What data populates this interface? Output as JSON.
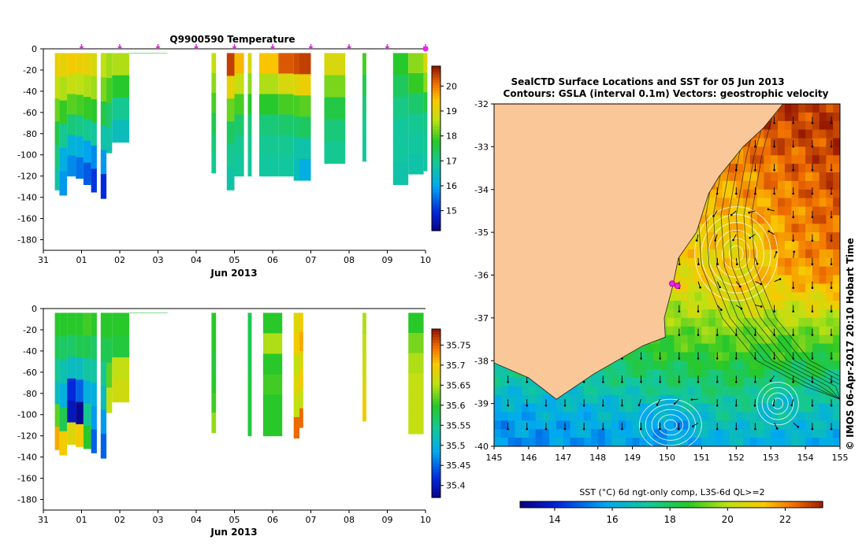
{
  "chart_data": [
    {
      "type": "heatmap",
      "panel": "temperature-profile",
      "title": "Q9900590  Temperature",
      "xlabel": "Jun 2013",
      "ylabel": "",
      "x_tick_labels": [
        "31",
        "01",
        "02",
        "03",
        "04",
        "05",
        "06",
        "07",
        "08",
        "09",
        "10"
      ],
      "x_range_days": [
        31,
        41
      ],
      "y_ticks": [
        0,
        -20,
        -40,
        -60,
        -80,
        -100,
        -120,
        -140,
        -160,
        -180
      ],
      "ylim": [
        -190,
        0
      ],
      "colorbar": {
        "ticks": [
          15,
          16,
          17,
          18,
          19,
          20
        ],
        "range": [
          14.2,
          20.8
        ]
      },
      "profile_marker_days": [
        32.0,
        33.0,
        34.0,
        35.0,
        36.0,
        37.0,
        38.0,
        39.0,
        40.0,
        41.0
      ],
      "profiles": [
        {
          "t0": 31.3,
          "t1": 31.42,
          "bottom": -133,
          "values": [
            19.3,
            18.8,
            18.2,
            17.6,
            17.2,
            16.8
          ]
        },
        {
          "t0": 31.42,
          "t1": 31.62,
          "bottom": -138,
          "values": [
            19.2,
            18.6,
            17.9,
            17.0,
            16.2,
            15.9
          ]
        },
        {
          "t0": 31.62,
          "t1": 31.85,
          "bottom": -120,
          "values": [
            19.4,
            18.8,
            18.1,
            17.2,
            16.3,
            15.8
          ]
        },
        {
          "t0": 31.85,
          "t1": 32.05,
          "bottom": -122,
          "values": [
            19.3,
            18.7,
            18.0,
            17.1,
            16.2,
            15.6
          ]
        },
        {
          "t0": 32.05,
          "t1": 32.25,
          "bottom": -128,
          "values": [
            19.2,
            18.6,
            17.9,
            17.0,
            16.0,
            15.4
          ]
        },
        {
          "t0": 32.25,
          "t1": 32.4,
          "bottom": -135,
          "values": [
            19.0,
            18.5,
            17.8,
            16.9,
            15.8,
            15.1
          ]
        },
        {
          "t0": 32.5,
          "t1": 32.65,
          "bottom": -141,
          "values": [
            18.7,
            18.3,
            17.6,
            16.8,
            15.9,
            15.0
          ]
        },
        {
          "t0": 32.65,
          "t1": 32.8,
          "bottom": -98,
          "values": [
            18.5,
            18.0,
            17.3,
            16.8
          ]
        },
        {
          "t0": 32.8,
          "t1": 33.25,
          "bottom": -88,
          "values": [
            18.6,
            17.8,
            17.0,
            16.6
          ]
        },
        {
          "t0": 33.25,
          "t1": 34.25,
          "bottom": -4,
          "values": [
            17.9
          ]
        },
        {
          "t0": 35.4,
          "t1": 35.52,
          "bottom": -117,
          "values": [
            18.8,
            18.4,
            18.0,
            17.5,
            17.2,
            17.0
          ]
        },
        {
          "t0": 35.8,
          "t1": 36.0,
          "bottom": -133,
          "values": [
            20.5,
            19.2,
            18.2,
            17.4,
            17.0,
            16.8
          ]
        },
        {
          "t0": 36.0,
          "t1": 36.25,
          "bottom": -120,
          "values": [
            19.6,
            18.8,
            18.0,
            17.3,
            17.0,
            16.9
          ]
        },
        {
          "t0": 36.35,
          "t1": 36.45,
          "bottom": -120,
          "values": [
            19.0,
            18.4,
            17.8,
            17.2,
            17.0,
            16.9
          ]
        },
        {
          "t0": 36.65,
          "t1": 37.15,
          "bottom": -120,
          "values": [
            19.5,
            18.6,
            17.8,
            17.2,
            17.0,
            16.9
          ]
        },
        {
          "t0": 37.15,
          "t1": 37.55,
          "bottom": -120,
          "values": [
            20.3,
            19.0,
            18.0,
            17.3,
            17.0,
            16.9
          ]
        },
        {
          "t0": 37.55,
          "t1": 37.7,
          "bottom": -124,
          "values": [
            20.4,
            19.1,
            18.0,
            17.3,
            16.8,
            16.6
          ]
        },
        {
          "t0": 37.7,
          "t1": 38.0,
          "bottom": -124,
          "values": [
            20.5,
            19.3,
            18.1,
            17.4,
            16.8,
            16.2
          ]
        },
        {
          "t0": 38.35,
          "t1": 38.9,
          "bottom": -108,
          "values": [
            19.0,
            18.3,
            17.6,
            17.2,
            17.0
          ]
        },
        {
          "t0": 39.35,
          "t1": 39.45,
          "bottom": -106,
          "values": [
            18.0,
            17.5,
            17.2,
            17.0,
            16.9
          ]
        },
        {
          "t0": 40.15,
          "t1": 40.55,
          "bottom": -128,
          "values": [
            17.8,
            17.4,
            17.1,
            16.9,
            16.9,
            16.8
          ]
        },
        {
          "t0": 40.55,
          "t1": 40.95,
          "bottom": -118,
          "values": [
            18.4,
            17.9,
            17.3,
            17.0,
            16.9,
            16.8
          ]
        },
        {
          "t0": 40.95,
          "t1": 41.05,
          "bottom": -115,
          "values": [
            19.0,
            18.4,
            17.6,
            17.1,
            17.0,
            16.9
          ]
        }
      ]
    },
    {
      "type": "heatmap",
      "panel": "salinity-profile",
      "title": "",
      "xlabel": "Jun 2013",
      "ylabel": "",
      "x_tick_labels": [
        "31",
        "01",
        "02",
        "03",
        "04",
        "05",
        "06",
        "07",
        "08",
        "09",
        "10"
      ],
      "x_range_days": [
        31,
        41
      ],
      "y_ticks": [
        0,
        -20,
        -40,
        -60,
        -80,
        -100,
        -120,
        -140,
        -160,
        -180
      ],
      "ylim": [
        -190,
        0
      ],
      "colorbar": {
        "ticks": [
          35.4,
          35.45,
          35.5,
          35.55,
          35.6,
          35.65,
          35.7,
          35.75
        ],
        "tick_labels": [
          "35.4",
          "35.45",
          "35.5",
          "35.55",
          "35.6",
          "35.65",
          "35.7",
          "35.75"
        ],
        "range": [
          35.37,
          35.79
        ]
      },
      "profiles": [
        {
          "t0": 31.3,
          "t1": 31.42,
          "bottom": -133,
          "values": [
            35.6,
            35.58,
            35.55,
            35.52,
            35.62,
            35.72
          ]
        },
        {
          "t0": 31.42,
          "t1": 31.62,
          "bottom": -138,
          "values": [
            35.6,
            35.57,
            35.53,
            35.5,
            35.58,
            35.7
          ]
        },
        {
          "t0": 31.62,
          "t1": 31.85,
          "bottom": -128,
          "values": [
            35.6,
            35.57,
            35.52,
            35.42,
            35.4,
            35.68
          ]
        },
        {
          "t0": 31.85,
          "t1": 32.05,
          "bottom": -130,
          "values": [
            35.6,
            35.58,
            35.52,
            35.45,
            35.38,
            35.7
          ]
        },
        {
          "t0": 32.05,
          "t1": 32.25,
          "bottom": -132,
          "values": [
            35.61,
            35.58,
            35.54,
            35.5,
            35.55,
            35.6
          ]
        },
        {
          "t0": 32.25,
          "t1": 32.4,
          "bottom": -136,
          "values": [
            35.6,
            35.57,
            35.54,
            35.5,
            35.48,
            35.45
          ]
        },
        {
          "t0": 32.5,
          "t1": 32.65,
          "bottom": -141,
          "values": [
            35.6,
            35.58,
            35.55,
            35.52,
            35.48,
            35.45
          ]
        },
        {
          "t0": 32.65,
          "t1": 32.8,
          "bottom": -98,
          "values": [
            35.6,
            35.58,
            35.62,
            35.66
          ]
        },
        {
          "t0": 32.8,
          "t1": 33.25,
          "bottom": -88,
          "values": [
            35.6,
            35.59,
            35.66,
            35.67
          ]
        },
        {
          "t0": 33.25,
          "t1": 34.25,
          "bottom": -4,
          "values": [
            35.59
          ]
        },
        {
          "t0": 35.4,
          "t1": 35.52,
          "bottom": -117,
          "values": [
            35.6,
            35.6,
            35.59,
            35.6,
            35.61,
            35.64
          ]
        },
        {
          "t0": 36.35,
          "t1": 36.45,
          "bottom": -120,
          "values": [
            35.58,
            35.58,
            35.58,
            35.59,
            35.59,
            35.59
          ]
        },
        {
          "t0": 36.75,
          "t1": 37.25,
          "bottom": -120,
          "values": [
            35.6,
            35.65,
            35.6,
            35.61,
            35.6,
            35.6
          ]
        },
        {
          "t0": 37.55,
          "t1": 37.7,
          "bottom": -122,
          "values": [
            35.68,
            35.7,
            35.66,
            35.68,
            35.66,
            35.75
          ]
        },
        {
          "t0": 37.7,
          "t1": 37.8,
          "bottom": -112,
          "values": [
            35.7,
            35.72,
            35.68,
            35.7,
            35.66,
            35.75
          ]
        },
        {
          "t0": 39.35,
          "t1": 39.45,
          "bottom": -106,
          "values": [
            35.65,
            35.66,
            35.67,
            35.68,
            35.7
          ]
        },
        {
          "t0": 40.55,
          "t1": 40.95,
          "bottom": -118,
          "values": [
            35.6,
            35.63,
            35.65,
            35.66,
            35.66,
            35.66
          ]
        }
      ]
    },
    {
      "type": "heatmap",
      "panel": "sst-map",
      "title": "SealCTD Surface Locations and SST for 05 Jun 2013",
      "subtitle": "Contours: GSLA (interval 0.1m) Vectors: geostrophic velocity",
      "xlabel": "",
      "ylabel": "",
      "x_tick_labels": [
        "145",
        "146",
        "147",
        "148",
        "149",
        "150",
        "151",
        "152",
        "153",
        "154",
        "155"
      ],
      "y_tick_labels": [
        "-32",
        "-33",
        "-34",
        "-35",
        "-36",
        "-37",
        "-38",
        "-39",
        "-40"
      ],
      "xlim": [
        145,
        155
      ],
      "ylim": [
        -40,
        -32
      ],
      "colorbar_label": "SST (°C) 6d ngt-only comp, L3S-6d QL>=2",
      "colorbar": {
        "ticks": [
          14,
          16,
          18,
          20,
          22
        ],
        "range": [
          12.8,
          23.3
        ]
      },
      "side_label": "© IMOS 06-Apr-2017 20:10 Hobart Time",
      "coast_lon_lat": [
        [
          145,
          -38.05
        ],
        [
          146.0,
          -38.4
        ],
        [
          146.8,
          -38.9
        ],
        [
          147.9,
          -38.3
        ],
        [
          149.3,
          -37.65
        ],
        [
          149.95,
          -37.45
        ],
        [
          149.92,
          -37.0
        ],
        [
          150.15,
          -36.3
        ],
        [
          150.33,
          -35.6
        ],
        [
          150.85,
          -35.0
        ],
        [
          151.2,
          -34.1
        ],
        [
          151.5,
          -33.7
        ],
        [
          152.2,
          -33.0
        ],
        [
          152.8,
          -32.55
        ],
        [
          153.35,
          -32.0
        ]
      ],
      "seal_locations": [
        [
          150.3,
          -36.25
        ],
        [
          150.15,
          -36.2
        ]
      ],
      "sst_zones": [
        {
          "lat": -32.2,
          "values": [
            21.5,
            21.8,
            22.6,
            23.0
          ]
        },
        {
          "lat": -34.0,
          "values": [
            20.2,
            20.8,
            21.5,
            22.6
          ]
        },
        {
          "lat": -36.0,
          "values": [
            19.8,
            20.5,
            21.0,
            22.0
          ]
        },
        {
          "lat": -37.6,
          "values": [
            18.2,
            18.6,
            19.0,
            18.8
          ]
        },
        {
          "lat": -39.0,
          "values": [
            16.0,
            16.4,
            17.2,
            16.8
          ]
        },
        {
          "lat": -40.0,
          "values": [
            15.2,
            15.5,
            16.0,
            15.8
          ]
        }
      ],
      "eddies": [
        {
          "lon": 152.0,
          "lat": -35.5,
          "rx": 1.2,
          "ry": 1.1,
          "rings": 6,
          "sst": 20.8
        },
        {
          "lon": 150.1,
          "lat": -39.5,
          "rx": 0.9,
          "ry": 0.6,
          "rings": 5,
          "sst": 15.4
        },
        {
          "lon": 153.2,
          "lat": -39.0,
          "rx": 0.6,
          "ry": 0.5,
          "rings": 4,
          "sst": 16.4
        }
      ]
    }
  ]
}
